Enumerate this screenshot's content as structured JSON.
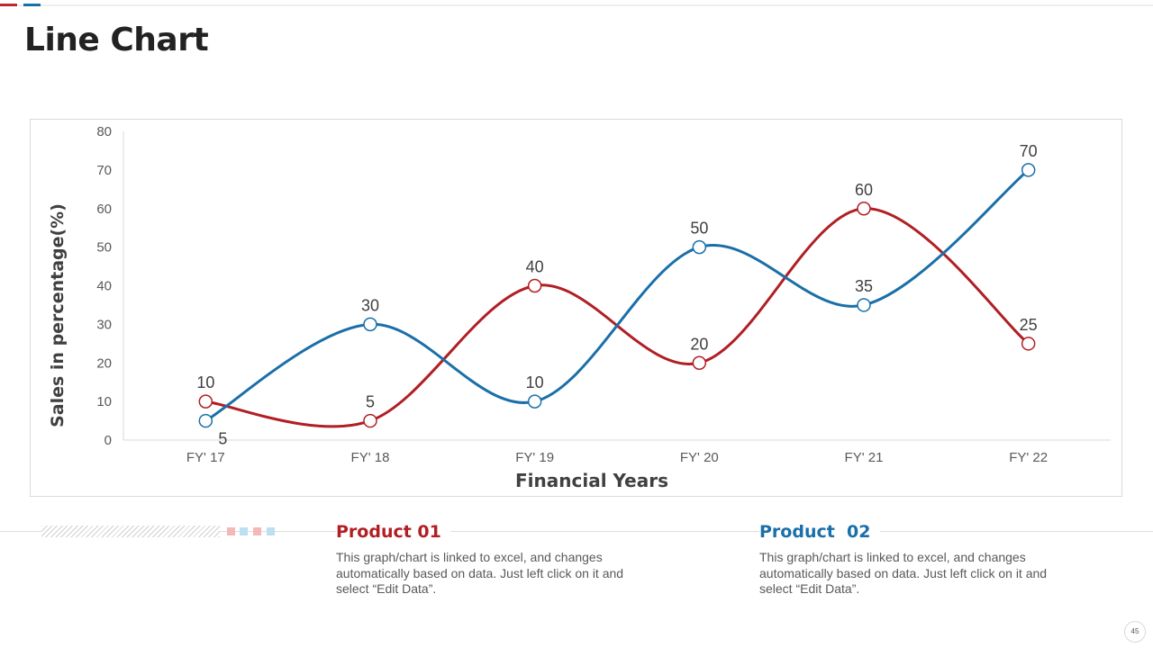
{
  "header": {
    "title": "Line Chart"
  },
  "chart_data": {
    "type": "line",
    "categories": [
      "FY' 17",
      "FY' 18",
      "FY' 19",
      "FY' 20",
      "FY' 21",
      "FY' 22"
    ],
    "series": [
      {
        "name": "Product 01",
        "color": "#b01f24",
        "values": [
          10,
          5,
          40,
          20,
          60,
          25
        ]
      },
      {
        "name": "Product 02",
        "color": "#1a6fa8",
        "values": [
          5,
          30,
          10,
          50,
          35,
          70
        ]
      }
    ],
    "xlabel": "Financial Years",
    "ylabel": "Sales in percentage(%)",
    "ylim": [
      0,
      80
    ],
    "yticks": [
      0,
      10,
      20,
      30,
      40,
      50,
      60,
      70,
      80
    ],
    "smooth": true,
    "data_labels": true,
    "legend": "none"
  },
  "products": [
    {
      "title": "Product 01",
      "description": "This graph/chart is linked to excel, and changes automatically based on data. Just left click on it and select “Edit Data”."
    },
    {
      "title": "Product  02",
      "description": "This graph/chart is linked to excel, and changes automatically based on data. Just left click on it and select “Edit Data”."
    }
  ],
  "footer": {
    "page_number": "45"
  }
}
